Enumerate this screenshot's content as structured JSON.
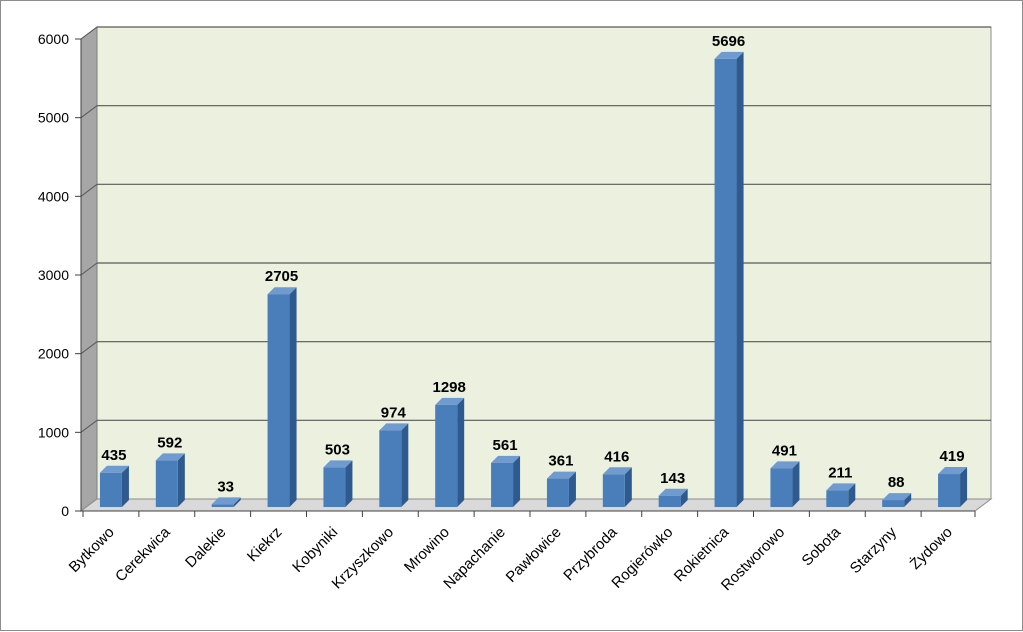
{
  "chart_data": {
    "type": "bar",
    "style": "3d-column",
    "categories": [
      "Bytkowo",
      "Cerekwica",
      "Dalekie",
      "Kiekrz",
      "Kobyniki",
      "Krzyszkowo",
      "Mrowino",
      "Napachanie",
      "Pawłowice",
      "Przybroda",
      "Rogierówko",
      "Rokietnica",
      "Rostworowo",
      "Sobota",
      "Starzyny",
      "Żydowo"
    ],
    "values": [
      435,
      592,
      33,
      2705,
      503,
      974,
      1298,
      561,
      361,
      416,
      143,
      5696,
      491,
      211,
      88,
      419
    ],
    "title": "",
    "xlabel": "",
    "ylabel": "",
    "ylim": [
      0,
      6000
    ],
    "yticks": [
      0,
      1000,
      2000,
      3000,
      4000,
      5000,
      6000
    ],
    "grid": true,
    "legend": "none",
    "data_labels": true,
    "colors": {
      "bar_front": "#4a7ebb",
      "bar_side": "#2f5a8f",
      "bar_top": "#6f9bd0",
      "plot_back": "#ebf1de",
      "plot_floor": "#d9d9d9",
      "plot_wall": "#a6a6a6",
      "gridline": "#595959"
    }
  }
}
